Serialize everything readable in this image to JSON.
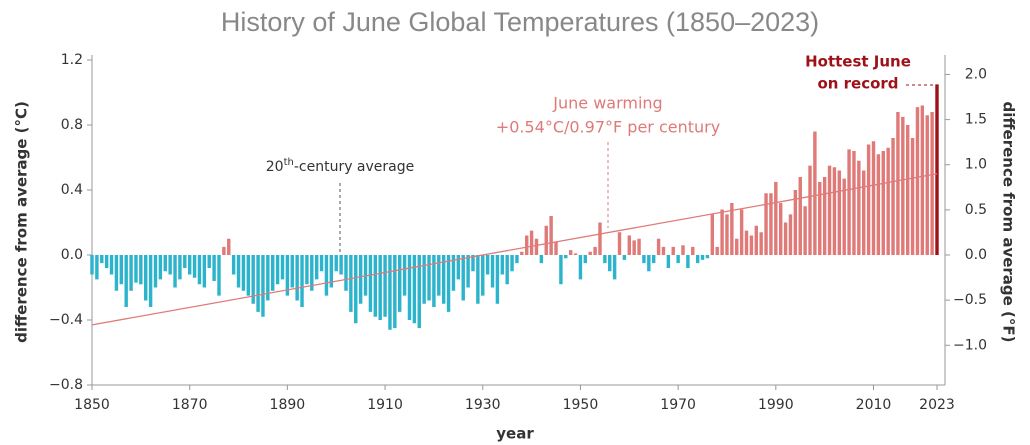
{
  "chart_data": {
    "type": "bar",
    "title": "History of June Global Temperatures (1850–2023)",
    "y_label": "difference from average (°C)",
    "y2_label": "difference from average (°F)",
    "x_label": "year",
    "x": [
      1850,
      1851,
      1852,
      1853,
      1854,
      1855,
      1856,
      1857,
      1858,
      1859,
      1860,
      1861,
      1862,
      1863,
      1864,
      1865,
      1866,
      1867,
      1868,
      1869,
      1870,
      1871,
      1872,
      1873,
      1874,
      1875,
      1876,
      1877,
      1878,
      1879,
      1880,
      1881,
      1882,
      1883,
      1884,
      1885,
      1886,
      1887,
      1888,
      1889,
      1890,
      1891,
      1892,
      1893,
      1894,
      1895,
      1896,
      1897,
      1898,
      1899,
      1900,
      1901,
      1902,
      1903,
      1904,
      1905,
      1906,
      1907,
      1908,
      1909,
      1910,
      1911,
      1912,
      1913,
      1914,
      1915,
      1916,
      1917,
      1918,
      1919,
      1920,
      1921,
      1922,
      1923,
      1924,
      1925,
      1926,
      1927,
      1928,
      1929,
      1930,
      1931,
      1932,
      1933,
      1934,
      1935,
      1936,
      1937,
      1938,
      1939,
      1940,
      1941,
      1942,
      1943,
      1944,
      1945,
      1946,
      1947,
      1948,
      1949,
      1950,
      1951,
      1952,
      1953,
      1954,
      1955,
      1956,
      1957,
      1958,
      1959,
      1960,
      1961,
      1962,
      1963,
      1964,
      1965,
      1966,
      1967,
      1968,
      1969,
      1970,
      1971,
      1972,
      1973,
      1974,
      1975,
      1976,
      1977,
      1978,
      1979,
      1980,
      1981,
      1982,
      1983,
      1984,
      1985,
      1986,
      1987,
      1988,
      1989,
      1990,
      1991,
      1992,
      1993,
      1994,
      1995,
      1996,
      1997,
      1998,
      1999,
      2000,
      2001,
      2002,
      2003,
      2004,
      2005,
      2006,
      2007,
      2008,
      2009,
      2010,
      2011,
      2012,
      2013,
      2014,
      2015,
      2016,
      2017,
      2018,
      2019,
      2020,
      2021,
      2022,
      2023
    ],
    "values": [
      -0.12,
      -0.15,
      -0.05,
      -0.08,
      -0.12,
      -0.22,
      -0.18,
      -0.32,
      -0.22,
      -0.17,
      -0.18,
      -0.28,
      -0.32,
      -0.2,
      -0.15,
      -0.1,
      -0.12,
      -0.2,
      -0.15,
      -0.08,
      -0.12,
      -0.14,
      -0.18,
      -0.2,
      -0.08,
      -0.16,
      -0.25,
      0.05,
      0.1,
      -0.12,
      -0.2,
      -0.22,
      -0.25,
      -0.3,
      -0.35,
      -0.38,
      -0.28,
      -0.22,
      -0.18,
      -0.15,
      -0.25,
      -0.2,
      -0.28,
      -0.32,
      -0.18,
      -0.22,
      -0.15,
      -0.1,
      -0.25,
      -0.2,
      -0.1,
      -0.12,
      -0.22,
      -0.35,
      -0.42,
      -0.3,
      -0.25,
      -0.35,
      -0.38,
      -0.4,
      -0.38,
      -0.46,
      -0.45,
      -0.35,
      -0.25,
      -0.4,
      -0.42,
      -0.45,
      -0.3,
      -0.28,
      -0.32,
      -0.25,
      -0.3,
      -0.35,
      -0.22,
      -0.15,
      -0.28,
      -0.2,
      -0.1,
      -0.3,
      -0.25,
      -0.12,
      -0.2,
      -0.3,
      -0.12,
      -0.18,
      -0.1,
      -0.05,
      0.02,
      0.12,
      0.15,
      0.1,
      -0.05,
      0.18,
      0.24,
      0.08,
      -0.18,
      -0.02,
      0.03,
      0.01,
      -0.15,
      -0.05,
      0.02,
      0.05,
      0.2,
      -0.05,
      -0.1,
      -0.15,
      0.14,
      -0.03,
      0.12,
      0.09,
      0.1,
      -0.05,
      -0.1,
      -0.05,
      0.1,
      0.05,
      -0.08,
      0.05,
      -0.05,
      0.06,
      -0.08,
      0.05,
      -0.05,
      -0.03,
      -0.02,
      0.25,
      0.05,
      0.28,
      0.25,
      0.32,
      0.1,
      0.28,
      0.15,
      0.12,
      0.18,
      0.14,
      0.38,
      0.38,
      0.45,
      0.32,
      0.2,
      0.25,
      0.4,
      0.48,
      0.3,
      0.55,
      0.76,
      0.45,
      0.48,
      0.55,
      0.54,
      0.52,
      0.47,
      0.65,
      0.64,
      0.58,
      0.52,
      0.68,
      0.7,
      0.62,
      0.64,
      0.66,
      0.72,
      0.88,
      0.85,
      0.8,
      0.72,
      0.91,
      0.92,
      0.86,
      0.88,
      1.05
    ],
    "positive_color": "#df7a78",
    "negative_color": "#2bb4cc",
    "highlight_color": "#9e1118",
    "trend": {
      "x": [
        1850,
        2023
      ],
      "values": [
        -0.43,
        0.5
      ],
      "color": "#df7a78"
    },
    "xlim": [
      1850,
      2023
    ],
    "xticks": [
      1850,
      1870,
      1890,
      1910,
      1930,
      1950,
      1970,
      1990,
      2010,
      2023
    ],
    "ylim": [
      -0.8,
      1.2
    ],
    "yticks": [
      {
        "value": -0.8,
        "label": "−0.8"
      },
      {
        "value": -0.4,
        "label": "−0.4"
      },
      {
        "value": 0,
        "label": "0.0"
      },
      0.4,
      0.8,
      1.2
    ],
    "y2lim": [
      -1.44,
      2.16
    ],
    "y2ticks": [
      {
        "value": -1,
        "label": "−1.0"
      },
      {
        "value": -0.5,
        "label": "−0.5"
      },
      {
        "value": 0,
        "label": "0.0"
      },
      0.5,
      {
        "value": 1,
        "label": "1.0"
      },
      1.5,
      {
        "value": 2,
        "label": "2.0"
      }
    ],
    "annotations": {
      "average": [
        "20",
        "th",
        "-century average"
      ],
      "warming": [
        "June warming",
        "+0.54°C/0.97°F per century"
      ],
      "hottest": [
        "Hottest June",
        "on record"
      ]
    }
  }
}
